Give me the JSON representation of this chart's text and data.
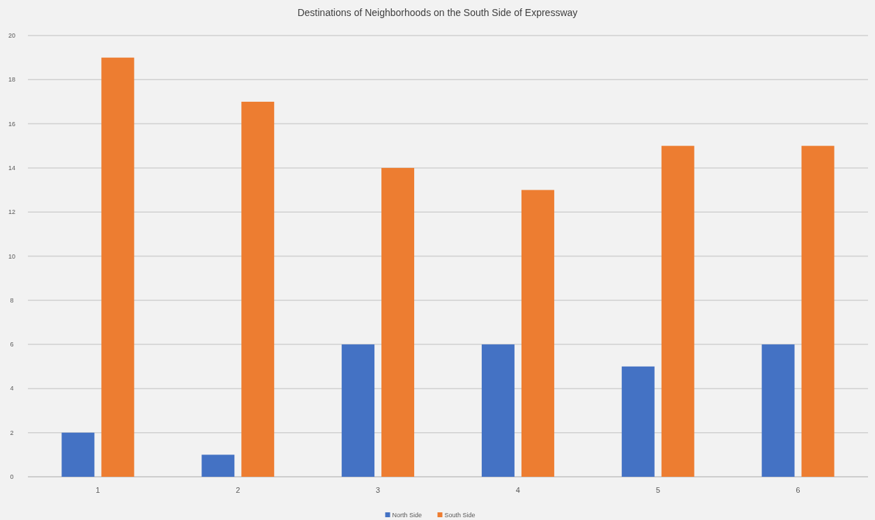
{
  "chart_data": {
    "type": "bar",
    "title": "Destinations of Neighborhoods on the South Side of Expressway",
    "categories": [
      "1",
      "2",
      "3",
      "4",
      "5",
      "6"
    ],
    "series": [
      {
        "name": "North Side",
        "color": "#4472c4",
        "values": [
          2,
          1,
          6,
          6,
          5,
          6
        ]
      },
      {
        "name": "South Side",
        "color": "#ed7d31",
        "values": [
          19,
          17,
          14,
          13,
          15,
          15
        ]
      }
    ],
    "ylim": [
      0,
      20
    ],
    "yticks": [
      0,
      2,
      4,
      6,
      8,
      10,
      12,
      14,
      16,
      18,
      20
    ],
    "grid": "y",
    "legend": "bottom"
  }
}
